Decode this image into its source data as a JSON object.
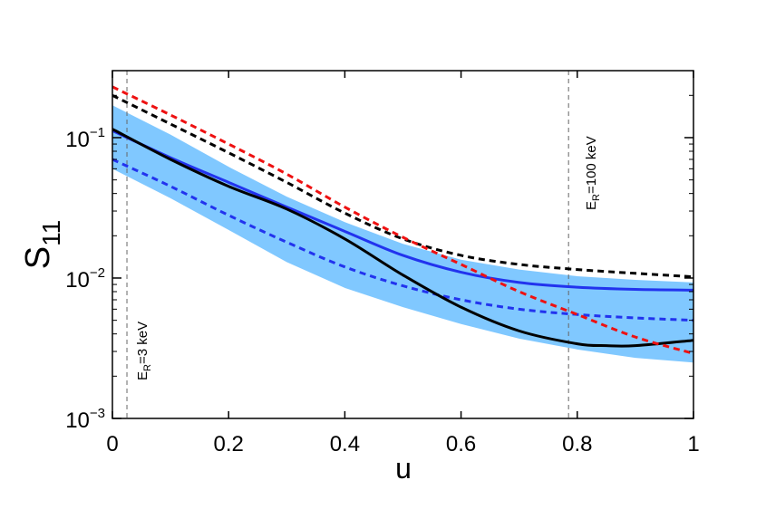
{
  "chart_data": {
    "type": "line",
    "title": "",
    "xlabel": "u",
    "ylabel": {
      "main": "S",
      "sub": "11"
    },
    "xlim": [
      0,
      1
    ],
    "ylim": [
      0.001,
      0.3
    ],
    "yscale": "log",
    "xticks": [
      {
        "value": 0,
        "label": "0"
      },
      {
        "value": 0.2,
        "label": "0.2"
      },
      {
        "value": 0.4,
        "label": "0.4"
      },
      {
        "value": 0.6,
        "label": "0.6"
      },
      {
        "value": 0.8,
        "label": "0.8"
      },
      {
        "value": 1,
        "label": "1"
      }
    ],
    "yticks": [
      {
        "value": 0.001,
        "base": "10",
        "exp": "−3"
      },
      {
        "value": 0.01,
        "base": "10",
        "exp": "−2"
      },
      {
        "value": 0.1,
        "base": "10",
        "exp": "−1"
      }
    ],
    "band": {
      "name": "uncertainty band",
      "color": "#80c8ff",
      "x": [
        0,
        0.1,
        0.2,
        0.3,
        0.4,
        0.5,
        0.6,
        0.7,
        0.8,
        0.9,
        1.0
      ],
      "upper": [
        0.17,
        0.105,
        0.062,
        0.038,
        0.025,
        0.0175,
        0.0135,
        0.0115,
        0.0103,
        0.0097,
        0.0093
      ],
      "lower": [
        0.06,
        0.037,
        0.022,
        0.013,
        0.0085,
        0.0062,
        0.0047,
        0.0037,
        0.0031,
        0.0027,
        0.0025
      ]
    },
    "series": [
      {
        "name": "blue solid",
        "color": "#2233ee",
        "dash": "solid",
        "x": [
          0,
          0.1,
          0.2,
          0.3,
          0.4,
          0.5,
          0.6,
          0.7,
          0.8,
          0.9,
          1.0
        ],
        "y": [
          0.112,
          0.072,
          0.048,
          0.032,
          0.0215,
          0.0145,
          0.011,
          0.0093,
          0.0086,
          0.0083,
          0.0082
        ]
      },
      {
        "name": "blue dashed",
        "color": "#2233ee",
        "dash": "dashed",
        "x": [
          0,
          0.1,
          0.2,
          0.3,
          0.4,
          0.5,
          0.6,
          0.7,
          0.8,
          0.9,
          1.0
        ],
        "y": [
          0.07,
          0.045,
          0.028,
          0.018,
          0.012,
          0.0088,
          0.007,
          0.006,
          0.0055,
          0.0052,
          0.005
        ]
      },
      {
        "name": "black solid",
        "color": "#000000",
        "dash": "solid",
        "x": [
          0,
          0.1,
          0.2,
          0.3,
          0.4,
          0.5,
          0.6,
          0.7,
          0.8,
          0.85,
          0.9,
          1.0
        ],
        "y": [
          0.115,
          0.07,
          0.045,
          0.031,
          0.019,
          0.0105,
          0.0062,
          0.0042,
          0.0034,
          0.0033,
          0.0033,
          0.0036
        ]
      },
      {
        "name": "black dashed",
        "color": "#000000",
        "dash": "dashed",
        "x": [
          0,
          0.1,
          0.2,
          0.3,
          0.4,
          0.5,
          0.6,
          0.7,
          0.8,
          0.9,
          1.0
        ],
        "y": [
          0.2,
          0.125,
          0.078,
          0.048,
          0.029,
          0.019,
          0.0145,
          0.0125,
          0.0115,
          0.0108,
          0.0102
        ]
      },
      {
        "name": "red dashed",
        "color": "#ee1111",
        "dash": "dashed",
        "x": [
          0,
          0.1,
          0.2,
          0.3,
          0.4,
          0.5,
          0.6,
          0.7,
          0.8,
          0.9,
          1.0
        ],
        "y": [
          0.23,
          0.145,
          0.09,
          0.055,
          0.032,
          0.0195,
          0.0125,
          0.008,
          0.0055,
          0.0038,
          0.0029
        ]
      }
    ],
    "vlines": [
      {
        "x": 0.025,
        "label_main": "E",
        "label_sub": "R",
        "label_rest": "=3 keV"
      },
      {
        "x": 0.785,
        "label_main": "E",
        "label_sub": "R",
        "label_rest": "=100 keV"
      }
    ]
  }
}
